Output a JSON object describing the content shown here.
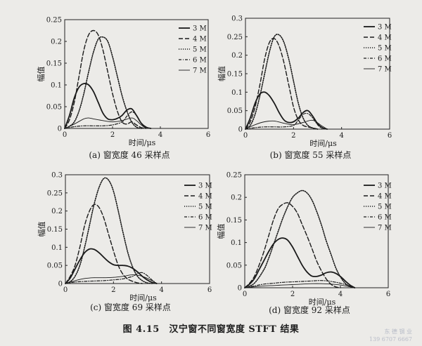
{
  "figure_caption": "图 4.15　汉宁窗不同窗宽度 STFT 结果",
  "watermark": {
    "line1": "东 德 钢 业",
    "line2": "139 6707 6667"
  },
  "series_styles": [
    {
      "name": "3 M",
      "dash": "",
      "width": 1.8
    },
    {
      "name": "4 M",
      "dash": "6,3",
      "width": 1.4
    },
    {
      "name": "5 M",
      "dash": "1.2,1.8",
      "width": 1.6
    },
    {
      "name": "6 M",
      "dash": "4,2,1,2",
      "width": 1.2
    },
    {
      "name": "7 M",
      "dash": "",
      "width": 0.9
    }
  ],
  "chart_data": [
    {
      "type": "line",
      "caption": "(a) 窗宽度 46 采样点",
      "xlabel": "时间/μs",
      "ylabel": "幅值",
      "xlim": [
        0,
        6
      ],
      "ylim": [
        0,
        0.25
      ],
      "xticks": [
        "0",
        "2",
        "4",
        "6"
      ],
      "yticks": [
        "0",
        "0.05",
        "0.1",
        "0.15",
        "0.2",
        "0.25"
      ],
      "legend": "top-right",
      "series": [
        {
          "name": "3 M",
          "x": [
            0,
            0.2,
            0.4,
            0.6,
            0.8,
            1.0,
            1.2,
            1.4,
            1.6,
            1.8,
            2.0,
            2.2,
            2.4,
            2.6,
            2.8,
            3.0,
            3.2,
            3.4,
            3.6
          ],
          "y": [
            0,
            0.03,
            0.07,
            0.095,
            0.103,
            0.1,
            0.085,
            0.06,
            0.035,
            0.022,
            0.02,
            0.023,
            0.03,
            0.042,
            0.045,
            0.03,
            0.012,
            0.003,
            0
          ]
        },
        {
          "name": "4 M",
          "x": [
            0,
            0.2,
            0.4,
            0.6,
            0.8,
            1.0,
            1.2,
            1.4,
            1.6,
            1.8,
            2.0,
            2.2,
            2.4,
            2.6,
            2.8,
            3.0,
            3.2,
            3.4
          ],
          "y": [
            0,
            0.02,
            0.06,
            0.12,
            0.18,
            0.215,
            0.225,
            0.215,
            0.18,
            0.13,
            0.08,
            0.04,
            0.015,
            0.01,
            0.015,
            0.008,
            0.002,
            0
          ]
        },
        {
          "name": "5 M",
          "x": [
            0,
            0.2,
            0.4,
            0.6,
            0.8,
            1.0,
            1.2,
            1.4,
            1.6,
            1.8,
            2.0,
            2.2,
            2.4,
            2.6,
            2.8,
            3.0,
            3.2
          ],
          "y": [
            0,
            0.005,
            0.015,
            0.04,
            0.08,
            0.13,
            0.175,
            0.205,
            0.21,
            0.2,
            0.165,
            0.12,
            0.075,
            0.04,
            0.015,
            0.003,
            0
          ]
        },
        {
          "name": "6 M",
          "x": [
            0,
            0.4,
            0.8,
            1.2,
            1.6,
            2.0,
            2.4,
            2.6,
            2.8,
            3.0,
            3.2,
            3.4
          ],
          "y": [
            0,
            0.004,
            0.006,
            0.006,
            0.006,
            0.008,
            0.015,
            0.028,
            0.038,
            0.03,
            0.012,
            0
          ]
        },
        {
          "name": "7 M",
          "x": [
            0,
            0.4,
            0.8,
            1.0,
            1.2,
            1.6,
            2.0,
            2.4,
            2.8,
            3.0,
            3.2,
            3.4
          ],
          "y": [
            0,
            0.01,
            0.022,
            0.024,
            0.022,
            0.018,
            0.015,
            0.018,
            0.024,
            0.018,
            0.008,
            0
          ]
        }
      ]
    },
    {
      "type": "line",
      "caption": "(b) 窗宽度 55 采样点",
      "xlabel": "时间/μs",
      "ylabel": "幅值",
      "xlim": [
        0,
        6
      ],
      "ylim": [
        0,
        0.3
      ],
      "xticks": [
        "0",
        "2",
        "4",
        "6"
      ],
      "yticks": [
        "0",
        "0.05",
        "0.1",
        "0.15",
        "0.2",
        "0.25",
        "0.3"
      ],
      "legend": "top-right",
      "series": [
        {
          "name": "3 M",
          "x": [
            0,
            0.2,
            0.4,
            0.6,
            0.8,
            1.0,
            1.2,
            1.4,
            1.6,
            1.8,
            2.0,
            2.2,
            2.4,
            2.6,
            2.8,
            3.0,
            3.2,
            3.4
          ],
          "y": [
            0,
            0.03,
            0.07,
            0.095,
            0.1,
            0.09,
            0.07,
            0.045,
            0.025,
            0.018,
            0.02,
            0.03,
            0.045,
            0.05,
            0.035,
            0.015,
            0.004,
            0
          ]
        },
        {
          "name": "4 M",
          "x": [
            0,
            0.2,
            0.4,
            0.6,
            0.8,
            1.0,
            1.2,
            1.4,
            1.6,
            1.8,
            2.0,
            2.2,
            2.4,
            2.6,
            2.8,
            3.0
          ],
          "y": [
            0,
            0.02,
            0.06,
            0.12,
            0.19,
            0.235,
            0.245,
            0.225,
            0.18,
            0.12,
            0.06,
            0.025,
            0.01,
            0.006,
            0.003,
            0
          ]
        },
        {
          "name": "5 M",
          "x": [
            0,
            0.2,
            0.4,
            0.6,
            0.8,
            1.0,
            1.2,
            1.4,
            1.6,
            1.8,
            2.0,
            2.2,
            2.4,
            2.6,
            2.8,
            3.0
          ],
          "y": [
            0,
            0.01,
            0.04,
            0.09,
            0.15,
            0.21,
            0.25,
            0.255,
            0.235,
            0.19,
            0.13,
            0.07,
            0.03,
            0.01,
            0.003,
            0
          ]
        },
        {
          "name": "6 M",
          "x": [
            0,
            0.4,
            0.8,
            1.2,
            1.6,
            2.0,
            2.2,
            2.4,
            2.6,
            2.8,
            3.0,
            3.2
          ],
          "y": [
            0,
            0.004,
            0.006,
            0.006,
            0.006,
            0.01,
            0.025,
            0.04,
            0.042,
            0.03,
            0.012,
            0
          ]
        },
        {
          "name": "7 M",
          "x": [
            0,
            0.4,
            0.8,
            1.2,
            1.6,
            2.0,
            2.4,
            2.8,
            3.2,
            3.4
          ],
          "y": [
            0,
            0.012,
            0.02,
            0.022,
            0.016,
            0.012,
            0.018,
            0.024,
            0.008,
            0
          ]
        }
      ]
    },
    {
      "type": "line",
      "caption": "(c) 窗宽度 69 采样点",
      "xlabel": "时间/μs",
      "ylabel": "幅值",
      "xlim": [
        0,
        6
      ],
      "ylim": [
        0,
        0.3
      ],
      "xticks": [
        "0",
        "2",
        "4",
        "6"
      ],
      "yticks": [
        "0",
        "0.05",
        "0.1",
        "0.15",
        "0.2",
        "0.25",
        "0.3"
      ],
      "legend": "top-right",
      "series": [
        {
          "name": "3 M",
          "x": [
            0,
            0.2,
            0.4,
            0.6,
            0.8,
            1.0,
            1.2,
            1.4,
            1.6,
            1.8,
            2.0,
            2.2,
            2.4,
            2.6,
            2.8,
            3.0,
            3.2,
            3.4,
            3.6,
            3.8
          ],
          "y": [
            0,
            0.015,
            0.04,
            0.065,
            0.085,
            0.095,
            0.094,
            0.085,
            0.072,
            0.06,
            0.052,
            0.05,
            0.05,
            0.048,
            0.042,
            0.032,
            0.02,
            0.01,
            0.003,
            0
          ]
        },
        {
          "name": "4 M",
          "x": [
            0,
            0.2,
            0.4,
            0.6,
            0.8,
            1.0,
            1.2,
            1.4,
            1.6,
            1.8,
            2.0,
            2.2,
            2.4,
            2.6,
            2.8,
            3.0,
            3.2
          ],
          "y": [
            0,
            0.02,
            0.05,
            0.1,
            0.16,
            0.2,
            0.218,
            0.21,
            0.18,
            0.135,
            0.09,
            0.05,
            0.025,
            0.012,
            0.006,
            0.002,
            0
          ]
        },
        {
          "name": "5 M",
          "x": [
            0,
            0.2,
            0.4,
            0.6,
            0.8,
            1.0,
            1.2,
            1.4,
            1.6,
            1.8,
            2.0,
            2.2,
            2.4,
            2.6,
            2.8,
            3.0,
            3.2,
            3.4,
            3.6
          ],
          "y": [
            0,
            0.005,
            0.02,
            0.05,
            0.1,
            0.16,
            0.22,
            0.265,
            0.29,
            0.285,
            0.255,
            0.2,
            0.14,
            0.085,
            0.045,
            0.02,
            0.008,
            0.002,
            0
          ]
        },
        {
          "name": "6 M",
          "x": [
            0,
            0.4,
            0.8,
            1.2,
            1.6,
            2.0,
            2.4,
            2.8,
            3.0,
            3.2,
            3.4,
            3.6,
            3.8
          ],
          "y": [
            0,
            0.004,
            0.006,
            0.007,
            0.008,
            0.01,
            0.013,
            0.02,
            0.028,
            0.03,
            0.022,
            0.01,
            0
          ]
        },
        {
          "name": "7 M",
          "x": [
            0,
            0.4,
            0.8,
            1.2,
            1.6,
            2.0,
            2.4,
            2.8,
            3.2,
            3.6,
            3.8
          ],
          "y": [
            0,
            0.008,
            0.014,
            0.016,
            0.016,
            0.017,
            0.02,
            0.024,
            0.02,
            0.008,
            0
          ]
        }
      ]
    },
    {
      "type": "line",
      "caption": "(d) 窗宽度 92 采样点",
      "xlabel": "时间/μs",
      "ylabel": "幅值",
      "xlim": [
        0,
        6
      ],
      "ylim": [
        0,
        0.25
      ],
      "xticks": [
        "0",
        "2",
        "4",
        "6"
      ],
      "yticks": [
        "0",
        "0.05",
        "0.1",
        "0.15",
        "0.2",
        "0.25"
      ],
      "legend": "top-right",
      "series": [
        {
          "name": "3 M",
          "x": [
            0,
            0.2,
            0.4,
            0.6,
            0.8,
            1.0,
            1.2,
            1.4,
            1.6,
            1.8,
            2.0,
            2.2,
            2.4,
            2.6,
            2.8,
            3.0,
            3.2,
            3.4,
            3.6,
            3.8,
            4.0,
            4.2,
            4.4,
            4.6
          ],
          "y": [
            0,
            0.008,
            0.02,
            0.04,
            0.06,
            0.08,
            0.097,
            0.107,
            0.11,
            0.105,
            0.09,
            0.07,
            0.05,
            0.035,
            0.026,
            0.025,
            0.028,
            0.033,
            0.035,
            0.032,
            0.025,
            0.015,
            0.006,
            0
          ]
        },
        {
          "name": "4 M",
          "x": [
            0,
            0.2,
            0.4,
            0.6,
            0.8,
            1.0,
            1.2,
            1.4,
            1.6,
            1.8,
            2.0,
            2.2,
            2.4,
            2.6,
            2.8,
            3.0,
            3.2,
            3.4,
            3.6,
            3.8,
            4.0
          ],
          "y": [
            0,
            0.01,
            0.025,
            0.05,
            0.08,
            0.115,
            0.15,
            0.175,
            0.185,
            0.188,
            0.18,
            0.165,
            0.14,
            0.115,
            0.088,
            0.06,
            0.038,
            0.02,
            0.008,
            0.002,
            0
          ]
        },
        {
          "name": "5 M",
          "x": [
            0,
            0.4,
            0.8,
            1.0,
            1.2,
            1.4,
            1.6,
            1.8,
            2.0,
            2.2,
            2.4,
            2.6,
            2.8,
            3.0,
            3.2,
            3.4,
            3.6,
            3.8,
            4.0,
            4.2,
            4.4,
            4.6
          ],
          "y": [
            0,
            0.01,
            0.04,
            0.065,
            0.095,
            0.125,
            0.155,
            0.18,
            0.2,
            0.21,
            0.215,
            0.21,
            0.195,
            0.17,
            0.14,
            0.105,
            0.075,
            0.045,
            0.024,
            0.01,
            0.003,
            0
          ]
        },
        {
          "name": "6 M",
          "x": [
            0,
            0.4,
            0.8,
            1.2,
            1.6,
            2.0,
            2.4,
            2.8,
            3.2,
            3.6,
            4.0,
            4.4,
            4.6
          ],
          "y": [
            0,
            0.004,
            0.008,
            0.01,
            0.012,
            0.013,
            0.014,
            0.015,
            0.016,
            0.014,
            0.01,
            0.004,
            0
          ]
        },
        {
          "name": "7 M",
          "x": [
            0,
            0.4,
            0.8,
            1.2,
            1.6,
            2.0,
            2.4,
            2.8,
            3.2,
            3.6,
            4.0,
            4.4,
            4.6
          ],
          "y": [
            0,
            0.002,
            0.004,
            0.005,
            0.006,
            0.007,
            0.008,
            0.009,
            0.009,
            0.008,
            0.006,
            0.002,
            0
          ]
        }
      ]
    }
  ]
}
